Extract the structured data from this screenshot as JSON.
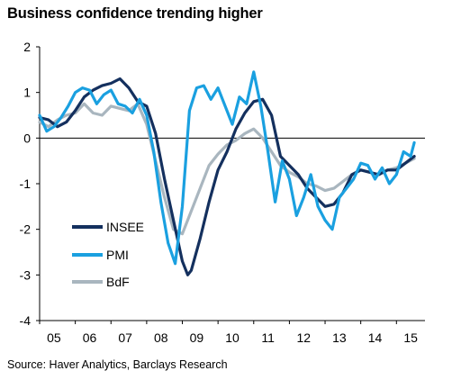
{
  "title": "Business confidence trending higher",
  "source": "Source: Haver Analytics, Barclays Research",
  "chart_data": {
    "type": "line",
    "ylim": [
      -4,
      2
    ],
    "yticks": [
      2,
      1,
      0,
      -1,
      -2,
      -3,
      -4
    ],
    "xlim": [
      2005.0,
      2015.8
    ],
    "xticks": [
      "05",
      "06",
      "07",
      "08",
      "09",
      "10",
      "11",
      "12",
      "13",
      "14",
      "15"
    ],
    "legend_position": "left",
    "series": [
      {
        "name": "INSEE",
        "color": "#14305e",
        "x": [
          2005.0,
          2005.25,
          2005.5,
          2005.75,
          2006.0,
          2006.25,
          2006.5,
          2006.75,
          2007.0,
          2007.25,
          2007.5,
          2007.75,
          2008.0,
          2008.25,
          2008.5,
          2008.75,
          2009.0,
          2009.15,
          2009.25,
          2009.5,
          2009.75,
          2010.0,
          2010.25,
          2010.5,
          2010.75,
          2011.0,
          2011.25,
          2011.5,
          2011.75,
          2012.0,
          2012.25,
          2012.5,
          2012.75,
          2013.0,
          2013.25,
          2013.5,
          2013.75,
          2014.0,
          2014.25,
          2014.5,
          2014.75,
          2015.0,
          2015.25,
          2015.5
        ],
        "y": [
          0.45,
          0.4,
          0.25,
          0.35,
          0.6,
          0.9,
          1.05,
          1.15,
          1.2,
          1.3,
          1.1,
          0.8,
          0.7,
          0.1,
          -0.9,
          -1.8,
          -2.7,
          -3.0,
          -2.9,
          -2.2,
          -1.4,
          -0.7,
          -0.3,
          0.2,
          0.55,
          0.8,
          0.85,
          0.5,
          -0.4,
          -0.6,
          -0.8,
          -1.1,
          -1.3,
          -1.5,
          -1.45,
          -1.2,
          -0.8,
          -0.7,
          -0.75,
          -0.8,
          -0.7,
          -0.7,
          -0.55,
          -0.4
        ]
      },
      {
        "name": "PMI",
        "color": "#1aa0e0",
        "x": [
          2005.0,
          2005.2,
          2005.4,
          2005.6,
          2005.8,
          2006.0,
          2006.2,
          2006.4,
          2006.6,
          2006.8,
          2007.0,
          2007.2,
          2007.4,
          2007.6,
          2007.8,
          2008.0,
          2008.2,
          2008.4,
          2008.6,
          2008.8,
          2009.0,
          2009.2,
          2009.4,
          2009.6,
          2009.8,
          2010.0,
          2010.2,
          2010.4,
          2010.6,
          2010.8,
          2011.0,
          2011.2,
          2011.4,
          2011.6,
          2011.8,
          2012.0,
          2012.2,
          2012.4,
          2012.6,
          2012.8,
          2013.0,
          2013.2,
          2013.4,
          2013.6,
          2013.8,
          2014.0,
          2014.2,
          2014.4,
          2014.6,
          2014.8,
          2015.0,
          2015.2,
          2015.4,
          2015.5
        ],
        "y": [
          0.5,
          0.15,
          0.25,
          0.45,
          0.7,
          1.0,
          1.1,
          1.05,
          0.75,
          0.95,
          1.05,
          0.75,
          0.7,
          0.55,
          0.85,
          0.5,
          -0.3,
          -1.4,
          -2.3,
          -2.75,
          -1.5,
          0.6,
          1.1,
          1.15,
          0.85,
          1.1,
          0.7,
          0.3,
          0.9,
          0.75,
          1.45,
          0.7,
          -0.3,
          -1.4,
          -0.5,
          -0.9,
          -1.7,
          -1.3,
          -0.8,
          -1.5,
          -1.8,
          -2.0,
          -1.3,
          -1.1,
          -0.9,
          -0.55,
          -0.6,
          -0.9,
          -0.65,
          -1.0,
          -0.8,
          -0.3,
          -0.4,
          -0.1
        ]
      },
      {
        "name": "BdF",
        "color": "#a9b6bf",
        "x": [
          2005.0,
          2005.25,
          2005.5,
          2005.75,
          2006.0,
          2006.25,
          2006.5,
          2006.75,
          2007.0,
          2007.25,
          2007.5,
          2007.75,
          2008.0,
          2008.25,
          2008.5,
          2008.75,
          2009.0,
          2009.25,
          2009.5,
          2009.75,
          2010.0,
          2010.25,
          2010.5,
          2010.75,
          2011.0,
          2011.25,
          2011.5,
          2011.75,
          2012.0,
          2012.25,
          2012.5,
          2012.75,
          2013.0,
          2013.25,
          2013.5,
          2013.75,
          2014.0,
          2014.25,
          2014.5,
          2014.75,
          2015.0,
          2015.25,
          2015.5
        ],
        "y": [
          0.35,
          0.25,
          0.4,
          0.5,
          0.55,
          0.75,
          0.55,
          0.5,
          0.7,
          0.65,
          0.6,
          0.75,
          0.3,
          -0.5,
          -1.3,
          -2.0,
          -2.1,
          -1.6,
          -1.1,
          -0.6,
          -0.35,
          -0.15,
          -0.05,
          0.1,
          0.2,
          0.0,
          -0.3,
          -0.6,
          -0.75,
          -0.85,
          -1.0,
          -1.05,
          -1.15,
          -1.1,
          -0.95,
          -0.8,
          -0.7,
          -0.75,
          -0.8,
          -0.7,
          -0.65,
          -0.55,
          -0.45
        ]
      }
    ]
  }
}
